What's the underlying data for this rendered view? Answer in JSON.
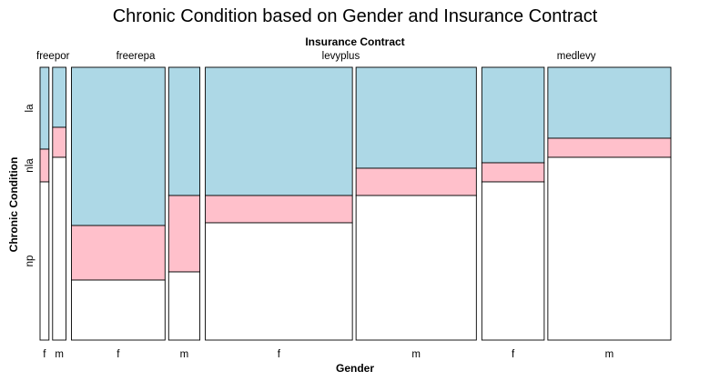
{
  "chart_data": {
    "type": "mosaic",
    "title": "Chronic Condition based on Gender and Insurance Contract",
    "top_axis_label": "Insurance Contract",
    "xlabel": "Gender",
    "ylabel": "Chronic Condition",
    "y_categories": [
      "la",
      "nla",
      "np"
    ],
    "groups": [
      {
        "name": "freepor",
        "tiles": [
          {
            "gender": "f",
            "width": 1,
            "la": 0.3,
            "nla": 0.12,
            "np": 0.58
          },
          {
            "gender": "m",
            "width": 1.5,
            "la": 0.22,
            "nla": 0.11,
            "np": 0.67
          }
        ]
      },
      {
        "name": "freerepa",
        "tiles": [
          {
            "gender": "f",
            "width": 10.5,
            "la": 0.58,
            "nla": 0.2,
            "np": 0.22
          },
          {
            "gender": "m",
            "width": 3.5,
            "la": 0.47,
            "nla": 0.28,
            "np": 0.25
          }
        ]
      },
      {
        "name": "levyplus",
        "tiles": [
          {
            "gender": "f",
            "width": 16.5,
            "la": 0.47,
            "nla": 0.1,
            "np": 0.43
          },
          {
            "gender": "m",
            "width": 13.5,
            "la": 0.37,
            "nla": 0.1,
            "np": 0.53
          }
        ]
      },
      {
        "name": "medlevy",
        "tiles": [
          {
            "gender": "f",
            "width": 7,
            "la": 0.35,
            "nla": 0.07,
            "np": 0.58
          },
          {
            "gender": "m",
            "width": 13.8,
            "la": 0.26,
            "nla": 0.07,
            "np": 0.67
          }
        ]
      }
    ],
    "colors": {
      "la": "#add8e6",
      "nla": "#ffc0cb",
      "np": "#ffffff"
    }
  }
}
